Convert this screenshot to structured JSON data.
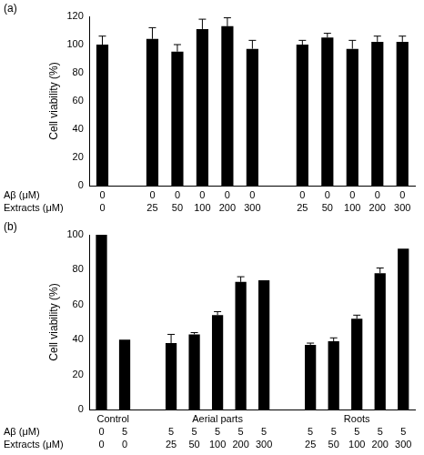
{
  "chart_data": [
    {
      "type": "bar",
      "title": "(a)",
      "y_label": "Cell viability (%)",
      "color": "#000000",
      "ylim": [
        0,
        120
      ],
      "yticks": [
        0,
        20,
        40,
        60,
        80,
        100,
        120
      ],
      "grid": false,
      "x_rows": [
        {
          "label": "Aβ (μM)",
          "values": [
            0,
            null,
            0,
            0,
            0,
            0,
            0,
            null,
            0,
            0,
            0,
            0,
            0
          ]
        },
        {
          "label": "Extracts (μM)",
          "values": [
            0,
            null,
            25,
            50,
            100,
            200,
            300,
            null,
            25,
            50,
            100,
            200,
            300
          ]
        }
      ],
      "values": [
        100,
        null,
        104,
        95,
        111,
        113,
        97,
        null,
        100,
        105,
        97,
        102,
        102
      ],
      "errors": [
        6,
        null,
        8,
        5,
        7,
        6,
        6,
        null,
        3,
        3,
        6,
        4,
        4
      ]
    },
    {
      "type": "bar",
      "title": "(b)",
      "y_label": "Cell viability (%)",
      "color": "#000000",
      "ylim": [
        0,
        100
      ],
      "yticks": [
        0,
        20,
        40,
        60,
        80,
        100
      ],
      "grid": false,
      "groups": [
        "Control",
        "Control",
        null,
        "Aerial parts",
        "Aerial parts",
        "Aerial parts",
        "Aerial parts",
        "Aerial parts",
        null,
        "Roots",
        "Roots",
        "Roots",
        "Roots",
        "Roots"
      ],
      "x_rows": [
        {
          "label": "Aβ (μM)",
          "values": [
            0,
            5,
            null,
            5,
            5,
            5,
            5,
            5,
            null,
            5,
            5,
            5,
            5,
            5
          ]
        },
        {
          "label": "Extracts (μM)",
          "values": [
            0,
            0,
            null,
            25,
            50,
            100,
            200,
            300,
            null,
            25,
            50,
            100,
            200,
            300
          ]
        }
      ],
      "values": [
        100,
        40,
        null,
        38,
        43,
        54,
        73,
        74,
        null,
        37,
        39,
        52,
        78,
        92
      ],
      "errors": [
        0,
        0,
        null,
        5,
        1,
        2,
        3,
        0,
        null,
        1,
        2,
        2,
        3,
        0
      ]
    }
  ]
}
